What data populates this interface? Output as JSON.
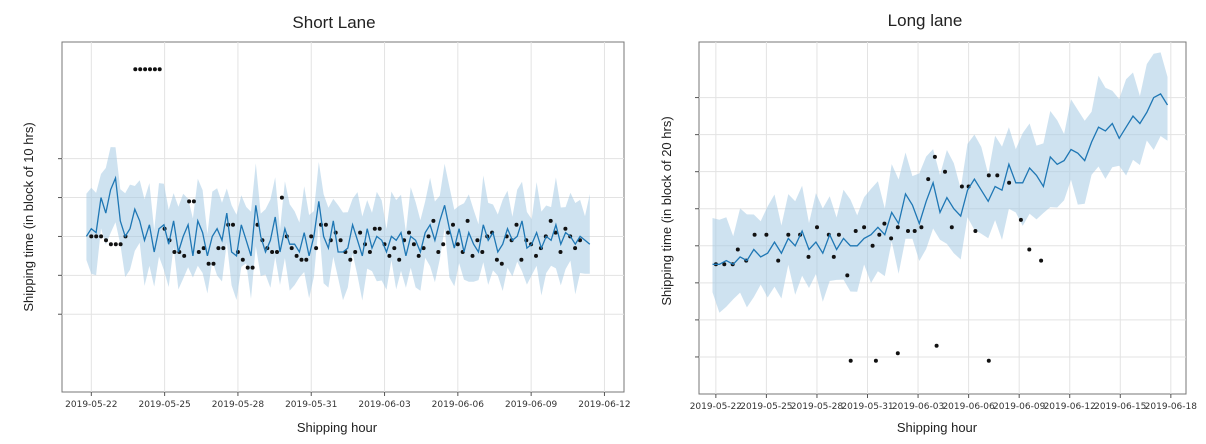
{
  "chart_data": [
    {
      "type": "line",
      "title": "Short Lane",
      "xlabel": "Shipping hour",
      "ylabel": "Shipping time (in block of 10 hrs)",
      "x_tick_labels": [
        "2019-05-22",
        "2019-05-25",
        "2019-05-28",
        "2019-05-31",
        "2019-06-03",
        "2019-06-06",
        "2019-06-09",
        "2019-06-12"
      ],
      "x_tick_days": [
        0,
        3,
        6,
        9,
        12,
        15,
        18,
        21
      ],
      "xlim": [
        -1.2,
        21.8
      ],
      "ylim": [
        -1.0,
        8.0
      ],
      "y_gridlines": [
        1,
        2,
        3,
        4,
        5
      ],
      "forecast_range_days": [
        -0.2,
        20.4
      ],
      "forecast_mean": [
        3.0,
        3.2,
        3.1,
        4.0,
        3.6,
        4.2,
        4.5,
        3.4,
        3.0,
        3.2,
        3.7,
        3.4,
        2.9,
        3.3,
        2.6,
        3.2,
        3.3,
        2.8,
        3.4,
        2.6,
        3.0,
        3.3,
        2.5,
        3.4,
        3.1,
        2.5,
        3.0,
        3.2,
        2.9,
        3.6,
        2.6,
        2.5,
        3.3,
        2.9,
        2.5,
        3.8,
        3.0,
        2.6,
        2.9,
        3.5,
        2.6,
        3.2,
        2.8,
        2.8,
        2.6,
        3.1,
        2.5,
        3.0,
        3.9,
        3.0,
        2.7,
        3.4,
        2.6,
        2.6,
        2.7,
        3.3,
        2.9,
        2.5,
        3.2,
        2.7,
        3.0,
        2.9,
        2.6,
        3.0,
        2.9,
        3.1,
        2.5,
        3.0,
        2.9,
        2.6,
        3.1,
        3.3,
        2.9,
        3.4,
        3.8,
        3.2,
        2.7,
        3.2,
        2.6,
        3.1,
        2.8,
        2.6,
        3.3,
        2.9,
        3.1,
        2.6,
        2.8,
        3.2,
        2.9,
        3.0,
        3.4,
        2.7,
        2.8,
        3.1,
        2.7,
        3.0,
        2.9,
        3.3,
        2.8,
        3.1,
        3.0,
        2.8,
        3.0,
        2.9,
        2.8
      ],
      "forecast_band_width": 0.95,
      "observations": [
        [
          0.0,
          3.0
        ],
        [
          0.2,
          3.0
        ],
        [
          0.4,
          3.0
        ],
        [
          0.6,
          2.9
        ],
        [
          0.8,
          2.8
        ],
        [
          1.0,
          2.8
        ],
        [
          1.2,
          2.8
        ],
        [
          1.4,
          3.0
        ],
        [
          1.8,
          7.3
        ],
        [
          2.0,
          7.3
        ],
        [
          2.2,
          7.3
        ],
        [
          2.4,
          7.3
        ],
        [
          2.6,
          7.3
        ],
        [
          2.8,
          7.3
        ],
        [
          3.0,
          3.2
        ],
        [
          3.2,
          2.9
        ],
        [
          3.4,
          2.6
        ],
        [
          3.6,
          2.6
        ],
        [
          3.8,
          2.5
        ],
        [
          4.0,
          3.9
        ],
        [
          4.2,
          3.9
        ],
        [
          4.4,
          2.6
        ],
        [
          4.6,
          2.7
        ],
        [
          4.8,
          2.3
        ],
        [
          5.0,
          2.3
        ],
        [
          5.2,
          2.7
        ],
        [
          5.4,
          2.7
        ],
        [
          5.6,
          3.3
        ],
        [
          5.8,
          3.3
        ],
        [
          6.0,
          2.6
        ],
        [
          6.2,
          2.4
        ],
        [
          6.4,
          2.2
        ],
        [
          6.6,
          2.2
        ],
        [
          6.8,
          3.3
        ],
        [
          7.0,
          2.9
        ],
        [
          7.2,
          2.7
        ],
        [
          7.4,
          2.6
        ],
        [
          7.6,
          2.6
        ],
        [
          7.8,
          4.0
        ],
        [
          8.0,
          3.0
        ],
        [
          8.2,
          2.7
        ],
        [
          8.4,
          2.5
        ],
        [
          8.6,
          2.4
        ],
        [
          8.8,
          2.4
        ],
        [
          9.0,
          3.0
        ],
        [
          9.2,
          2.7
        ],
        [
          9.4,
          3.3
        ],
        [
          9.6,
          3.3
        ],
        [
          9.8,
          2.9
        ],
        [
          10.0,
          3.1
        ],
        [
          10.2,
          2.9
        ],
        [
          10.4,
          2.6
        ],
        [
          10.6,
          2.4
        ],
        [
          10.8,
          2.6
        ],
        [
          11.0,
          3.1
        ],
        [
          11.2,
          2.8
        ],
        [
          11.4,
          2.6
        ],
        [
          11.6,
          3.2
        ],
        [
          11.8,
          3.2
        ],
        [
          12.0,
          2.8
        ],
        [
          12.2,
          2.5
        ],
        [
          12.4,
          2.7
        ],
        [
          12.6,
          2.4
        ],
        [
          12.8,
          2.9
        ],
        [
          13.0,
          3.1
        ],
        [
          13.2,
          2.8
        ],
        [
          13.4,
          2.5
        ],
        [
          13.6,
          2.7
        ],
        [
          13.8,
          3.0
        ],
        [
          14.0,
          3.4
        ],
        [
          14.2,
          2.6
        ],
        [
          14.4,
          2.8
        ],
        [
          14.6,
          3.1
        ],
        [
          14.8,
          3.3
        ],
        [
          15.0,
          2.8
        ],
        [
          15.2,
          2.6
        ],
        [
          15.4,
          3.4
        ],
        [
          15.6,
          2.5
        ],
        [
          15.8,
          2.9
        ],
        [
          16.0,
          2.6
        ],
        [
          16.2,
          3.0
        ],
        [
          16.4,
          3.1
        ],
        [
          16.6,
          2.4
        ],
        [
          16.8,
          2.3
        ],
        [
          17.0,
          3.0
        ],
        [
          17.2,
          2.9
        ],
        [
          17.4,
          3.3
        ],
        [
          17.6,
          2.4
        ],
        [
          17.8,
          2.9
        ],
        [
          18.0,
          2.8
        ],
        [
          18.2,
          2.5
        ],
        [
          18.4,
          2.7
        ],
        [
          18.6,
          3.0
        ],
        [
          18.8,
          3.4
        ],
        [
          19.0,
          3.1
        ],
        [
          19.2,
          2.6
        ],
        [
          19.4,
          3.2
        ],
        [
          19.6,
          3.0
        ],
        [
          19.8,
          2.7
        ],
        [
          20.0,
          2.9
        ]
      ]
    },
    {
      "type": "line",
      "title": "Long lane",
      "xlabel": "Shipping hour",
      "ylabel": "Shipping time (in block of 20 hrs)",
      "x_tick_labels": [
        "2019-05-22",
        "2019-05-25",
        "2019-05-28",
        "2019-05-31",
        "2019-06-03",
        "2019-06-06",
        "2019-06-09",
        "2019-06-12",
        "2019-06-15",
        "2019-06-18"
      ],
      "x_tick_days": [
        0,
        3,
        6,
        9,
        12,
        15,
        18,
        21,
        24,
        27
      ],
      "xlim": [
        -1.0,
        27.9
      ],
      "ylim": [
        -1.0,
        8.5
      ],
      "y_gridlines": [
        0,
        1,
        2,
        3,
        4,
        5,
        6,
        7
      ],
      "forecast_range_days": [
        -0.2,
        26.8
      ],
      "forecast_mean": [
        2.5,
        2.5,
        2.6,
        2.5,
        2.7,
        2.6,
        2.9,
        2.7,
        2.8,
        3.1,
        2.8,
        3.2,
        3.0,
        3.4,
        2.9,
        3.1,
        2.8,
        3.3,
        2.9,
        3.2,
        3.0,
        3.0,
        3.2,
        3.3,
        3.5,
        3.3,
        3.9,
        3.6,
        4.4,
        4.1,
        3.6,
        4.2,
        4.7,
        3.9,
        4.3,
        4.0,
        3.8,
        4.5,
        4.8,
        4.5,
        4.2,
        4.6,
        4.5,
        5.2,
        4.7,
        4.7,
        5.1,
        4.9,
        4.6,
        5.4,
        5.2,
        5.3,
        5.6,
        5.5,
        5.3,
        5.8,
        6.2,
        6.1,
        6.3,
        5.9,
        6.2,
        6.5,
        6.3,
        6.6,
        7.0,
        7.1,
        6.8
      ],
      "forecast_band_width": 1.1,
      "observations": [
        [
          0.0,
          2.5
        ],
        [
          0.5,
          2.5
        ],
        [
          1.0,
          2.5
        ],
        [
          1.3,
          2.9
        ],
        [
          1.8,
          2.6
        ],
        [
          2.3,
          3.3
        ],
        [
          3.0,
          3.3
        ],
        [
          3.7,
          2.6
        ],
        [
          4.3,
          3.3
        ],
        [
          5.0,
          3.3
        ],
        [
          5.5,
          2.7
        ],
        [
          6.0,
          3.5
        ],
        [
          6.7,
          3.3
        ],
        [
          7.0,
          2.7
        ],
        [
          7.3,
          3.3
        ],
        [
          7.8,
          2.2
        ],
        [
          8.3,
          3.4
        ],
        [
          8.8,
          3.5
        ],
        [
          9.3,
          3.0
        ],
        [
          9.7,
          3.3
        ],
        [
          10.0,
          3.6
        ],
        [
          10.4,
          3.2
        ],
        [
          10.8,
          3.5
        ],
        [
          11.4,
          3.4
        ],
        [
          11.8,
          3.4
        ],
        [
          12.2,
          3.5
        ],
        [
          12.6,
          4.8
        ],
        [
          13.0,
          5.4
        ],
        [
          13.6,
          5.0
        ],
        [
          14.0,
          3.5
        ],
        [
          14.6,
          4.6
        ],
        [
          15.0,
          4.6
        ],
        [
          15.4,
          3.4
        ],
        [
          16.2,
          4.9
        ],
        [
          16.7,
          4.9
        ],
        [
          17.4,
          4.7
        ],
        [
          18.1,
          3.7
        ],
        [
          18.6,
          2.9
        ],
        [
          19.3,
          2.6
        ],
        [
          8.0,
          -0.1
        ],
        [
          9.5,
          -0.1
        ],
        [
          10.8,
          0.1
        ],
        [
          13.1,
          0.3
        ],
        [
          16.2,
          -0.1
        ]
      ]
    }
  ]
}
